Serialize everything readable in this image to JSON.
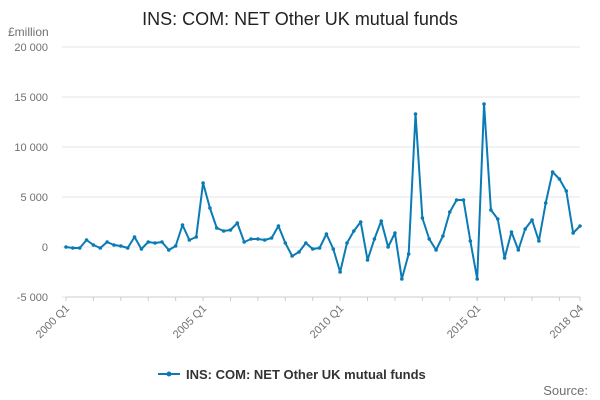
{
  "chart_data": {
    "type": "line",
    "title": "INS: COM: NET Other UK mutual funds",
    "unit_label": "£million",
    "xlabel": "",
    "ylabel": "",
    "ylim": [
      -5000,
      20000
    ],
    "yticks": [
      -5000,
      0,
      5000,
      10000,
      15000,
      20000
    ],
    "ytick_labels": [
      "-5 000",
      "0",
      "5 000",
      "10 000",
      "15 000",
      "20 000"
    ],
    "xtick_labels": [
      "2000 Q1",
      "2005 Q1",
      "2010 Q1",
      "2015 Q1",
      "2018 Q4"
    ],
    "xtick_indices": [
      0,
      20,
      40,
      60,
      75
    ],
    "grid": "horizontal",
    "legend_position": "bottom",
    "source_label": "Source:",
    "categories": [
      "2000 Q1",
      "2000 Q2",
      "2000 Q3",
      "2000 Q4",
      "2001 Q1",
      "2001 Q2",
      "2001 Q3",
      "2001 Q4",
      "2002 Q1",
      "2002 Q2",
      "2002 Q3",
      "2002 Q4",
      "2003 Q1",
      "2003 Q2",
      "2003 Q3",
      "2003 Q4",
      "2004 Q1",
      "2004 Q2",
      "2004 Q3",
      "2004 Q4",
      "2005 Q1",
      "2005 Q2",
      "2005 Q3",
      "2005 Q4",
      "2006 Q1",
      "2006 Q2",
      "2006 Q3",
      "2006 Q4",
      "2007 Q1",
      "2007 Q2",
      "2007 Q3",
      "2007 Q4",
      "2008 Q1",
      "2008 Q2",
      "2008 Q3",
      "2008 Q4",
      "2009 Q1",
      "2009 Q2",
      "2009 Q3",
      "2009 Q4",
      "2010 Q1",
      "2010 Q2",
      "2010 Q3",
      "2010 Q4",
      "2011 Q1",
      "2011 Q2",
      "2011 Q3",
      "2011 Q4",
      "2012 Q1",
      "2012 Q2",
      "2012 Q3",
      "2012 Q4",
      "2013 Q1",
      "2013 Q2",
      "2013 Q3",
      "2013 Q4",
      "2014 Q1",
      "2014 Q2",
      "2014 Q3",
      "2014 Q4",
      "2015 Q1",
      "2015 Q2",
      "2015 Q3",
      "2015 Q4",
      "2016 Q1",
      "2016 Q2",
      "2016 Q3",
      "2016 Q4",
      "2017 Q1",
      "2017 Q2",
      "2017 Q3",
      "2017 Q4",
      "2018 Q1",
      "2018 Q2",
      "2018 Q3",
      "2018 Q4"
    ],
    "series": [
      {
        "name": "INS: COM: NET Other UK mutual funds",
        "color": "#0a7bb5",
        "values": [
          0,
          -100,
          -100,
          700,
          200,
          -100,
          500,
          200,
          100,
          -100,
          1000,
          -200,
          500,
          400,
          500,
          -300,
          100,
          2200,
          700,
          1000,
          6400,
          3900,
          1900,
          1600,
          1700,
          2400,
          500,
          800,
          800,
          700,
          900,
          2100,
          400,
          -900,
          -500,
          400,
          -200,
          -100,
          1300,
          -200,
          -2500,
          400,
          1600,
          2500,
          -1300,
          800,
          2600,
          0,
          1400,
          -3200,
          -700,
          13300,
          2900,
          800,
          -300,
          1100,
          3500,
          4700,
          4700,
          600,
          -3200,
          14300,
          3700,
          2800,
          -1100,
          1500,
          -300,
          1800,
          2700,
          600,
          4400,
          7500,
          6800,
          5600,
          1400,
          2100
        ]
      }
    ]
  }
}
